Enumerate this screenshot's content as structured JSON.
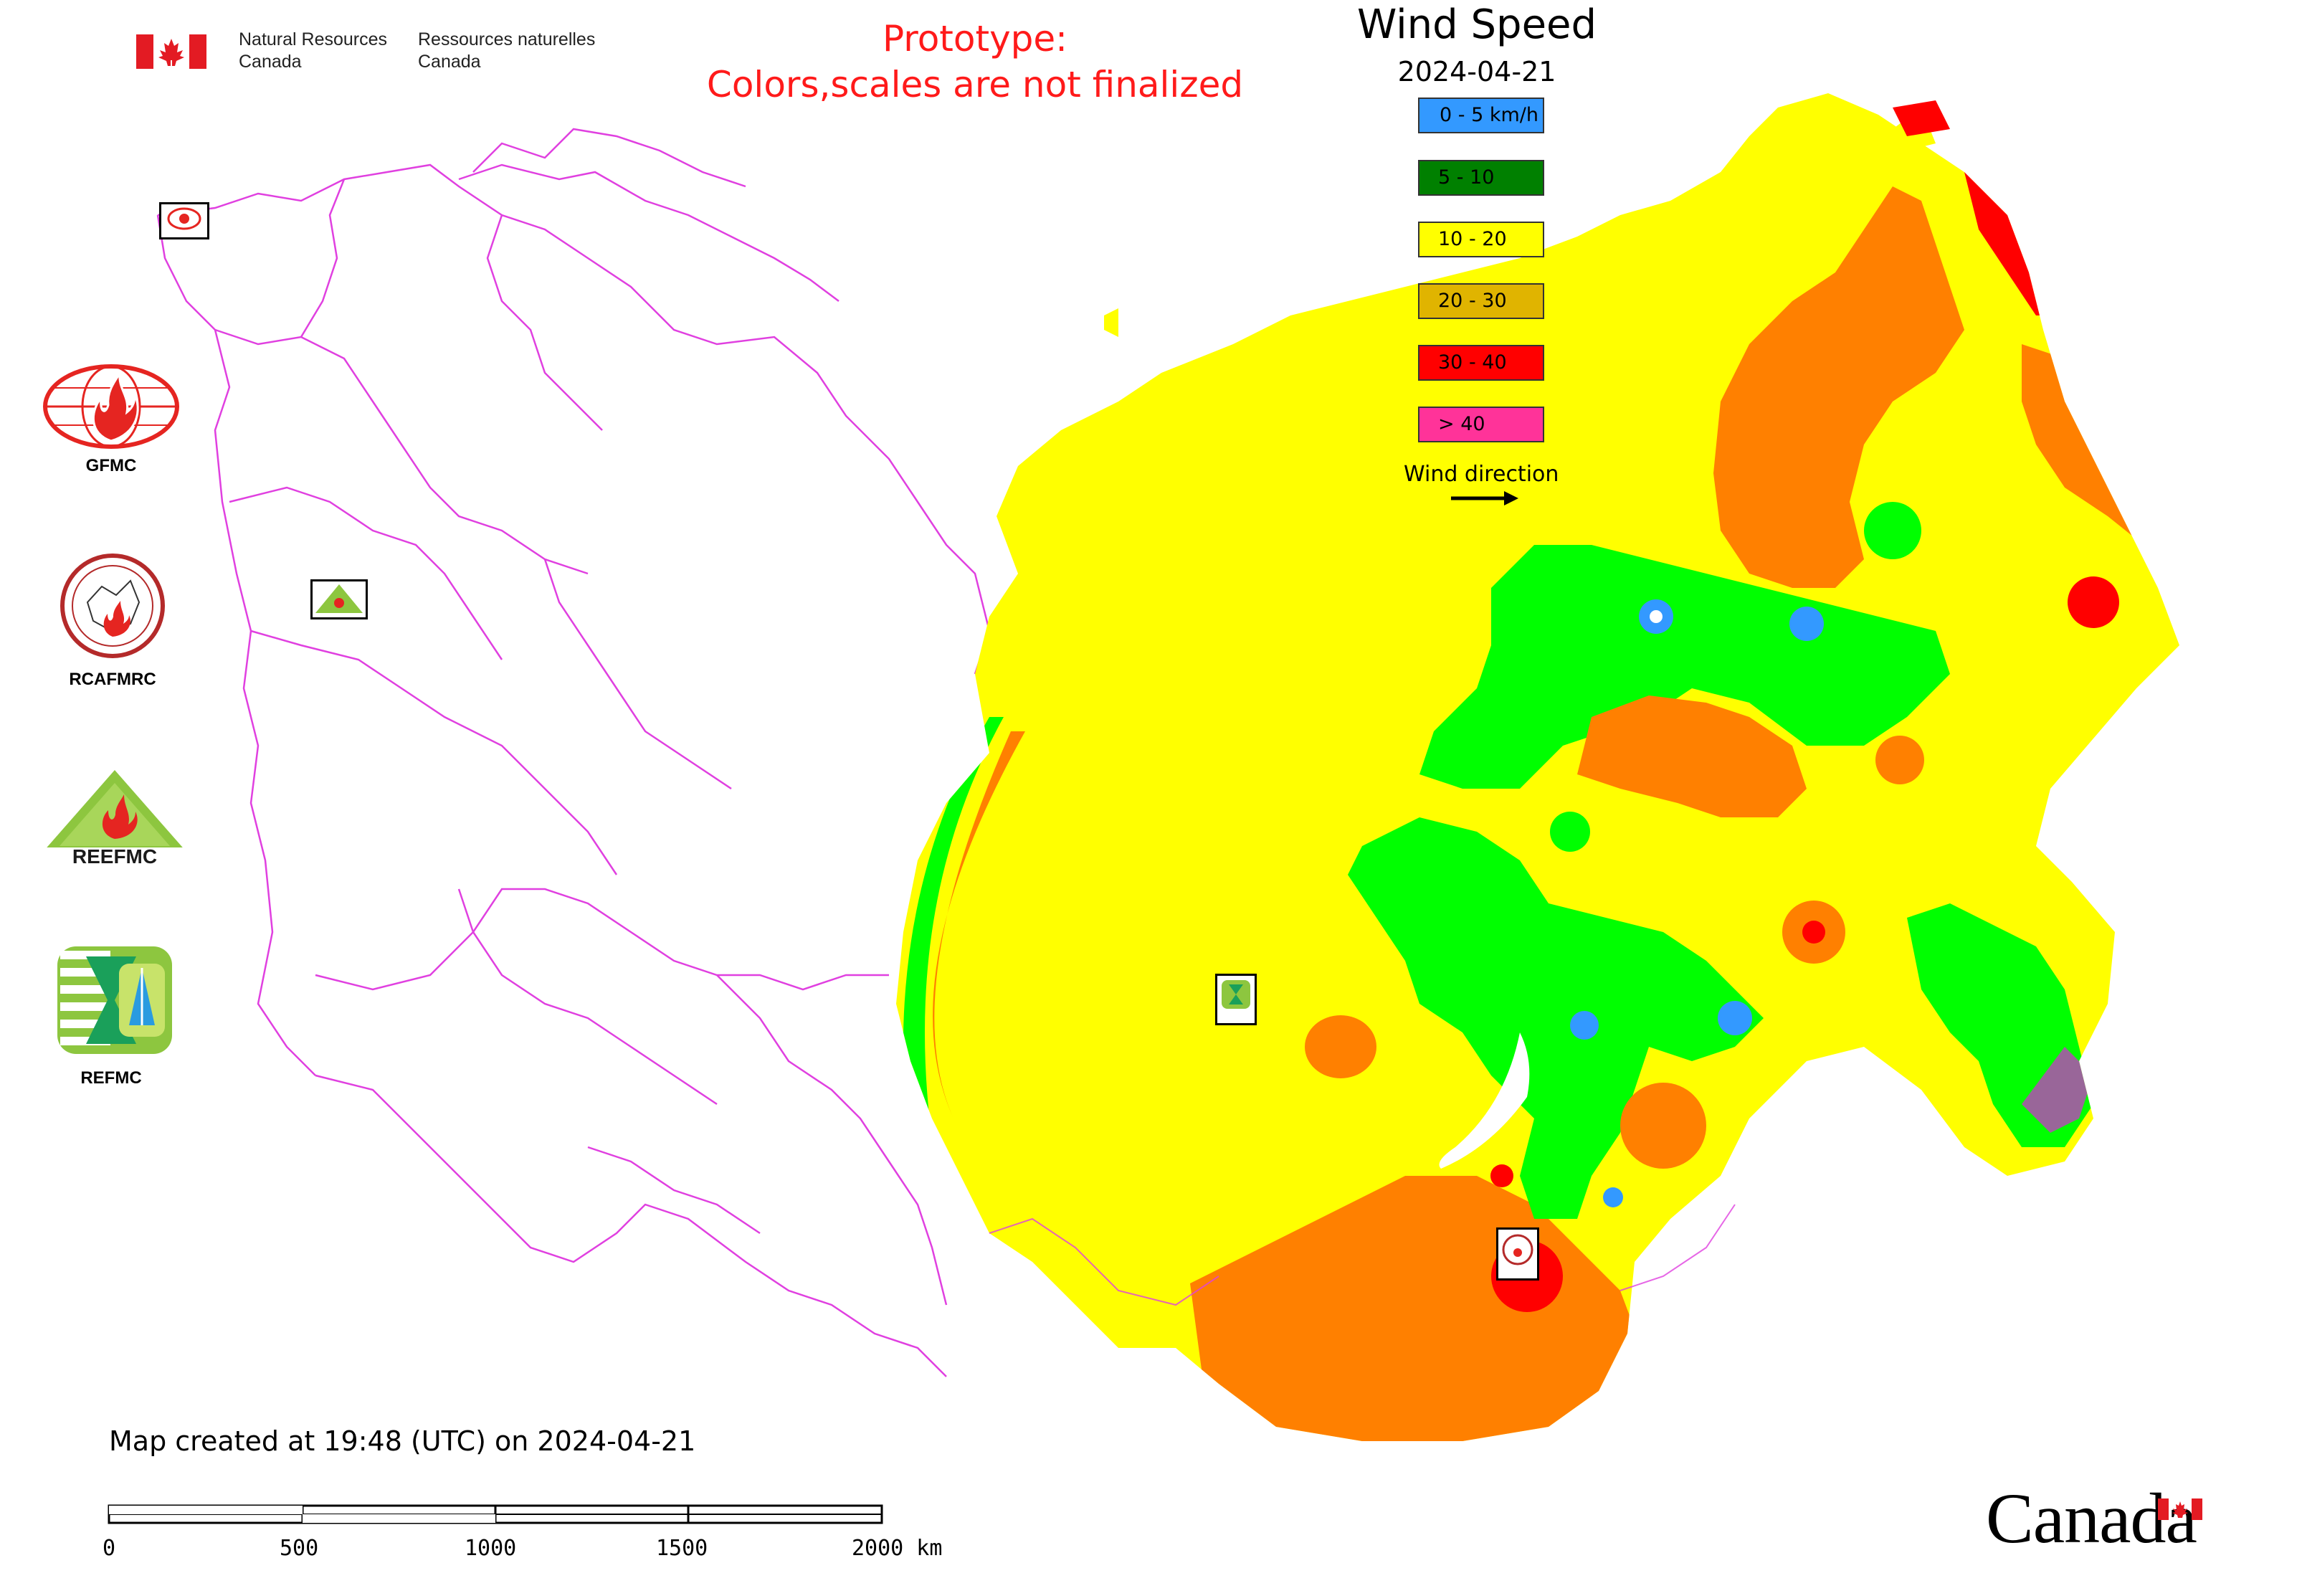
{
  "header": {
    "agency_en": [
      "Natural Resources",
      "Canada"
    ],
    "agency_fr": [
      "Ressources naturelles",
      "Canada"
    ],
    "notice": [
      "Prototype:",
      "Colors,scales are not finalized"
    ]
  },
  "map": {
    "title": "Wind Speed",
    "date": "2024-04-21",
    "created_text": "Map created at 19:48 (UTC) on 2024-04-21"
  },
  "legend": {
    "items": [
      {
        "label": "0 - 5 km/h",
        "color": "#3399ff"
      },
      {
        "label": "5 - 10",
        "color": "#008000"
      },
      {
        "label": "10 - 20",
        "color": "#ffff00"
      },
      {
        "label": "20 - 30",
        "color": "#e0b400"
      },
      {
        "label": "30 - 40",
        "color": "#ff0000"
      },
      {
        "label": "> 40",
        "color": "#ff3399"
      }
    ],
    "wind_direction_label": "Wind direction"
  },
  "organizations": [
    {
      "name": "GFMC"
    },
    {
      "name": "RCAFMRC"
    },
    {
      "name": "REEFMC",
      "logo_text": "REEFMC"
    },
    {
      "name": "REFMC"
    }
  ],
  "scale_bar": {
    "ticks": [
      "0",
      "500",
      "1000",
      "1500",
      "2000 km"
    ]
  },
  "colors": {
    "yellow": "#ffff00",
    "orange": "#ff8000",
    "green": "#00ff00",
    "red": "#ff0000",
    "blue": "#3399ff",
    "magenta": "#ff00ff",
    "border": "#e040e0"
  },
  "wordmark": "Canada"
}
